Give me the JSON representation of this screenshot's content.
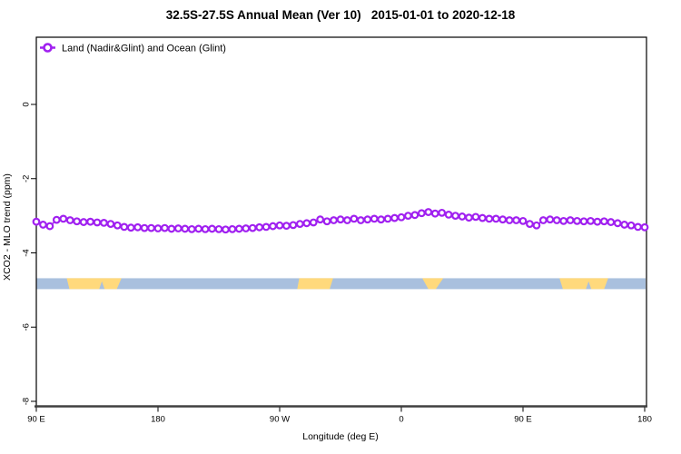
{
  "title": "32.5S-27.5S Annual Mean (Ver 10)   2015-01-01 to 2020-12-18",
  "legend": {
    "label": "Land (Nadir&Glint) and Ocean (Glint)",
    "marker": "open-circle-with-line",
    "marker_color": "#A020F0"
  },
  "axes": {
    "x": {
      "label": "Longitude (deg E)",
      "ticks": [
        {
          "lon": 90,
          "label": "90 E"
        },
        {
          "lon": 180,
          "label": "180"
        },
        {
          "lon": 270,
          "label": "90 W"
        },
        {
          "lon": 360,
          "label": "0"
        },
        {
          "lon": 450,
          "label": "90 E"
        },
        {
          "lon": 540,
          "label": "180"
        }
      ],
      "range": [
        90,
        540
      ]
    },
    "y": {
      "label": "XCO2 - MLO trend (ppm)",
      "ticks": [
        {
          "v": 0,
          "label": "0"
        },
        {
          "v": -2,
          "label": "-2"
        },
        {
          "v": -4,
          "label": "-4"
        },
        {
          "v": -6,
          "label": "-6"
        },
        {
          "v": -8,
          "label": "-8"
        }
      ],
      "range": [
        1.8,
        -8.1
      ]
    }
  },
  "chart_data": {
    "type": "line",
    "title": "32.5S-27.5S Annual Mean (Ver 10)   2015-01-01 to 2020-12-18",
    "xlabel": "Longitude (deg E)",
    "ylabel": "XCO2 - MLO trend (ppm)",
    "x_axis_note": "longitude axis wraps eastward from 90E through 180, 90W, 0, 90E to 180 (450 deg total)",
    "xlim_deg_east": [
      90,
      540
    ],
    "ylim": [
      1.8,
      -8.1
    ],
    "grid": false,
    "legend_position": "top-left-inside",
    "series": [
      {
        "name": "Land (Nadir&Glint) and Ocean (Glint)",
        "color": "#A020F0",
        "marker": "open-circle",
        "lon_start": 90,
        "lon_step": 5,
        "values": [
          -3.16,
          -3.24,
          -3.28,
          -3.11,
          -3.08,
          -3.12,
          -3.15,
          -3.17,
          -3.16,
          -3.18,
          -3.19,
          -3.22,
          -3.26,
          -3.3,
          -3.32,
          -3.31,
          -3.33,
          -3.33,
          -3.34,
          -3.33,
          -3.35,
          -3.34,
          -3.35,
          -3.36,
          -3.35,
          -3.36,
          -3.35,
          -3.36,
          -3.37,
          -3.36,
          -3.35,
          -3.34,
          -3.33,
          -3.31,
          -3.3,
          -3.28,
          -3.26,
          -3.27,
          -3.25,
          -3.22,
          -3.2,
          -3.18,
          -3.1,
          -3.15,
          -3.12,
          -3.1,
          -3.12,
          -3.08,
          -3.12,
          -3.1,
          -3.08,
          -3.1,
          -3.08,
          -3.06,
          -3.04,
          -3.0,
          -2.98,
          -2.93,
          -2.9,
          -2.94,
          -2.92,
          -2.97,
          -3.0,
          -3.02,
          -3.05,
          -3.03,
          -3.06,
          -3.08,
          -3.08,
          -3.1,
          -3.12,
          -3.12,
          -3.14,
          -3.22,
          -3.26,
          -3.12,
          -3.1,
          -3.12,
          -3.14,
          -3.12,
          -3.14,
          -3.15,
          -3.14,
          -3.16,
          -3.15,
          -3.17,
          -3.2,
          -3.24,
          -3.26,
          -3.3,
          -3.31
        ]
      }
    ],
    "land_ocean_strip": {
      "description": "horizontal map strip showing land (yellow) vs ocean (blue) across the 32.5S-27.5S latitude band",
      "y_center_ppm": -4.83,
      "ocean_color": "#A9C0DE",
      "land_color": "#FFD97C",
      "land_segments_lon": [
        {
          "lon": [
            112.5,
            153.0
          ],
          "taper": [
            2.0,
            3.5
          ]
        },
        {
          "lon": [
            284.5,
            309.5
          ],
          "taper": [
            -1.5,
            2.5
          ]
        },
        {
          "lon": [
            375.5,
            391.0
          ],
          "taper": [
            4.5,
            5.5
          ]
        },
        {
          "lon": [
            477.0,
            513.0
          ],
          "taper": [
            2.5,
            3.0
          ]
        }
      ],
      "ocean_notches_lon": [
        [
          136.5,
          140.5
        ],
        [
          496.5,
          500.5
        ]
      ]
    }
  }
}
